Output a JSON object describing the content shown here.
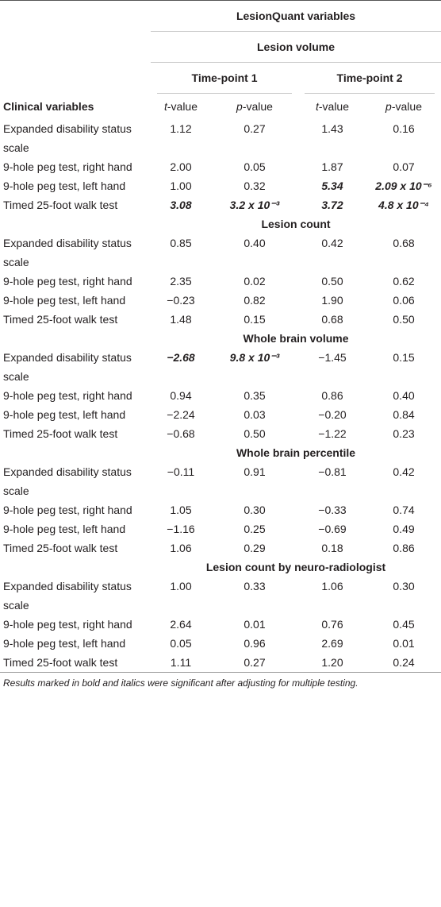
{
  "table": {
    "title": "LesionQuant variables",
    "timepoints": [
      "Time-point 1",
      "Time-point 2"
    ],
    "row_header": "Clinical variables",
    "columns": [
      {
        "symbol": "t",
        "suffix": "-value"
      },
      {
        "symbol": "p",
        "suffix": "-value"
      },
      {
        "symbol": "t",
        "suffix": "-value"
      },
      {
        "symbol": "p",
        "suffix": "-value"
      }
    ],
    "sections": [
      {
        "title": "Lesion volume",
        "rows": [
          {
            "label": "Expanded disability status scale",
            "values": [
              "1.12",
              "0.27",
              "1.43",
              "0.16"
            ],
            "significant": [
              false,
              false,
              false,
              false
            ]
          },
          {
            "label": "9-hole peg test, right hand",
            "values": [
              "2.00",
              "0.05",
              "1.87",
              "0.07"
            ],
            "significant": [
              false,
              false,
              false,
              false
            ]
          },
          {
            "label": "9-hole peg test, left hand",
            "values": [
              "1.00",
              "0.32",
              "5.34",
              "2.09 x 10⁻⁶"
            ],
            "significant": [
              false,
              false,
              true,
              true
            ]
          },
          {
            "label": "Timed 25-foot walk test",
            "values": [
              "3.08",
              "3.2 x 10⁻³",
              "3.72",
              "4.8 x 10⁻⁴"
            ],
            "significant": [
              true,
              true,
              true,
              true
            ]
          }
        ]
      },
      {
        "title": "Lesion count",
        "rows": [
          {
            "label": "Expanded disability status scale",
            "values": [
              "0.85",
              "0.40",
              "0.42",
              "0.68"
            ],
            "significant": [
              false,
              false,
              false,
              false
            ]
          },
          {
            "label": "9-hole peg test, right hand",
            "values": [
              "2.35",
              "0.02",
              "0.50",
              "0.62"
            ],
            "significant": [
              false,
              false,
              false,
              false
            ]
          },
          {
            "label": "9-hole peg test, left hand",
            "values": [
              "−0.23",
              "0.82",
              "1.90",
              "0.06"
            ],
            "significant": [
              false,
              false,
              false,
              false
            ]
          },
          {
            "label": "Timed 25-foot walk test",
            "values": [
              "1.48",
              "0.15",
              "0.68",
              "0.50"
            ],
            "significant": [
              false,
              false,
              false,
              false
            ]
          }
        ]
      },
      {
        "title": "Whole brain volume",
        "rows": [
          {
            "label": "Expanded disability status scale",
            "values": [
              "−2.68",
              "9.8 x 10⁻³",
              "−1.45",
              "0.15"
            ],
            "significant": [
              true,
              true,
              false,
              false
            ]
          },
          {
            "label": "9-hole peg test, right hand",
            "values": [
              "0.94",
              "0.35",
              "0.86",
              "0.40"
            ],
            "significant": [
              false,
              false,
              false,
              false
            ]
          },
          {
            "label": "9-hole peg test, left hand",
            "values": [
              "−2.24",
              "0.03",
              "−0.20",
              "0.84"
            ],
            "significant": [
              false,
              false,
              false,
              false
            ]
          },
          {
            "label": "Timed 25-foot walk test",
            "values": [
              "−0.68",
              "0.50",
              "−1.22",
              "0.23"
            ],
            "significant": [
              false,
              false,
              false,
              false
            ]
          }
        ]
      },
      {
        "title": "Whole brain percentile",
        "rows": [
          {
            "label": "Expanded disability status scale",
            "values": [
              "−0.11",
              "0.91",
              "−0.81",
              "0.42"
            ],
            "significant": [
              false,
              false,
              false,
              false
            ]
          },
          {
            "label": "9-hole peg test, right hand",
            "values": [
              "1.05",
              "0.30",
              "−0.33",
              "0.74"
            ],
            "significant": [
              false,
              false,
              false,
              false
            ]
          },
          {
            "label": "9-hole peg test, left hand",
            "values": [
              "−1.16",
              "0.25",
              "−0.69",
              "0.49"
            ],
            "significant": [
              false,
              false,
              false,
              false
            ]
          },
          {
            "label": "Timed 25-foot walk test",
            "values": [
              "1.06",
              "0.29",
              "0.18",
              "0.86"
            ],
            "significant": [
              false,
              false,
              false,
              false
            ]
          }
        ]
      },
      {
        "title": "Lesion count by neuro-radiologist",
        "rows": [
          {
            "label": "Expanded disability status scale",
            "values": [
              "1.00",
              "0.33",
              "1.06",
              "0.30"
            ],
            "significant": [
              false,
              false,
              false,
              false
            ]
          },
          {
            "label": "9-hole peg test, right hand",
            "values": [
              "2.64",
              "0.01",
              "0.76",
              "0.45"
            ],
            "significant": [
              false,
              false,
              false,
              false
            ]
          },
          {
            "label": "9-hole peg test, left hand",
            "values": [
              "0.05",
              "0.96",
              "2.69",
              "0.01"
            ],
            "significant": [
              false,
              false,
              false,
              false
            ]
          },
          {
            "label": "Timed 25-foot walk test",
            "values": [
              "1.11",
              "0.27",
              "1.20",
              "0.24"
            ],
            "significant": [
              false,
              false,
              false,
              false
            ]
          }
        ]
      }
    ],
    "footnote": "Results marked in bold and italics were significant after adjusting for multiple testing."
  }
}
